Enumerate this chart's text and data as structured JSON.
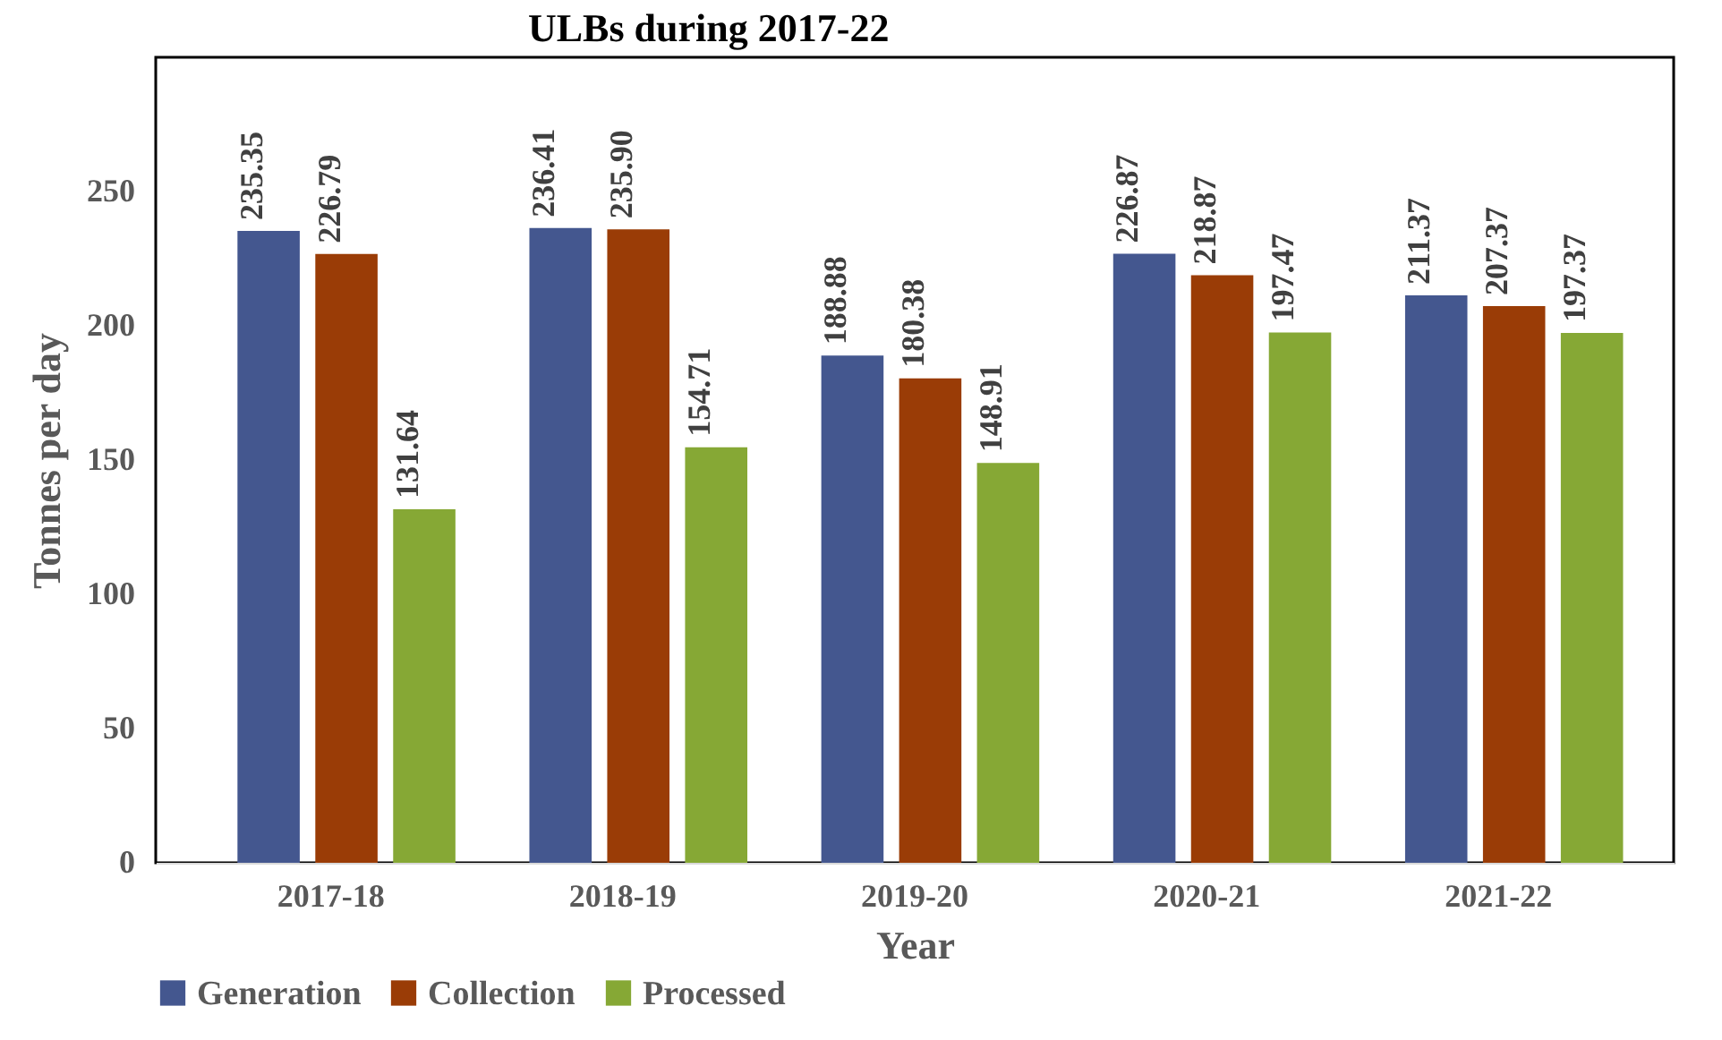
{
  "chart_data": {
    "type": "bar",
    "title": "ULBs during 2017-22",
    "xlabel": "Year",
    "ylabel": "Tonnes per day",
    "categories": [
      "2017-18",
      "2018-19",
      "2019-20",
      "2020-21",
      "2021-22"
    ],
    "series": [
      {
        "name": "Generation",
        "color": "#44578f",
        "values": [
          235.35,
          236.41,
          188.88,
          226.87,
          211.37
        ],
        "value_labels": [
          "235.35",
          "236.41",
          "188.88",
          "226.87",
          "211.37"
        ]
      },
      {
        "name": "Collection",
        "color": "#9a3c06",
        "values": [
          226.79,
          235.9,
          180.38,
          218.87,
          207.37
        ],
        "value_labels": [
          "226.79",
          "235.90",
          "180.38",
          "218.87",
          "207.37"
        ]
      },
      {
        "name": "Processed",
        "color": "#86a835",
        "values": [
          131.64,
          154.71,
          148.91,
          197.47,
          197.37
        ],
        "value_labels": [
          "131.64",
          "154.71",
          "148.91",
          "197.47",
          "197.37"
        ]
      }
    ],
    "ylim": [
      0,
      300
    ],
    "yticks": [
      0,
      50,
      100,
      150,
      200,
      250
    ],
    "grid": false,
    "legend": "bottom left"
  }
}
